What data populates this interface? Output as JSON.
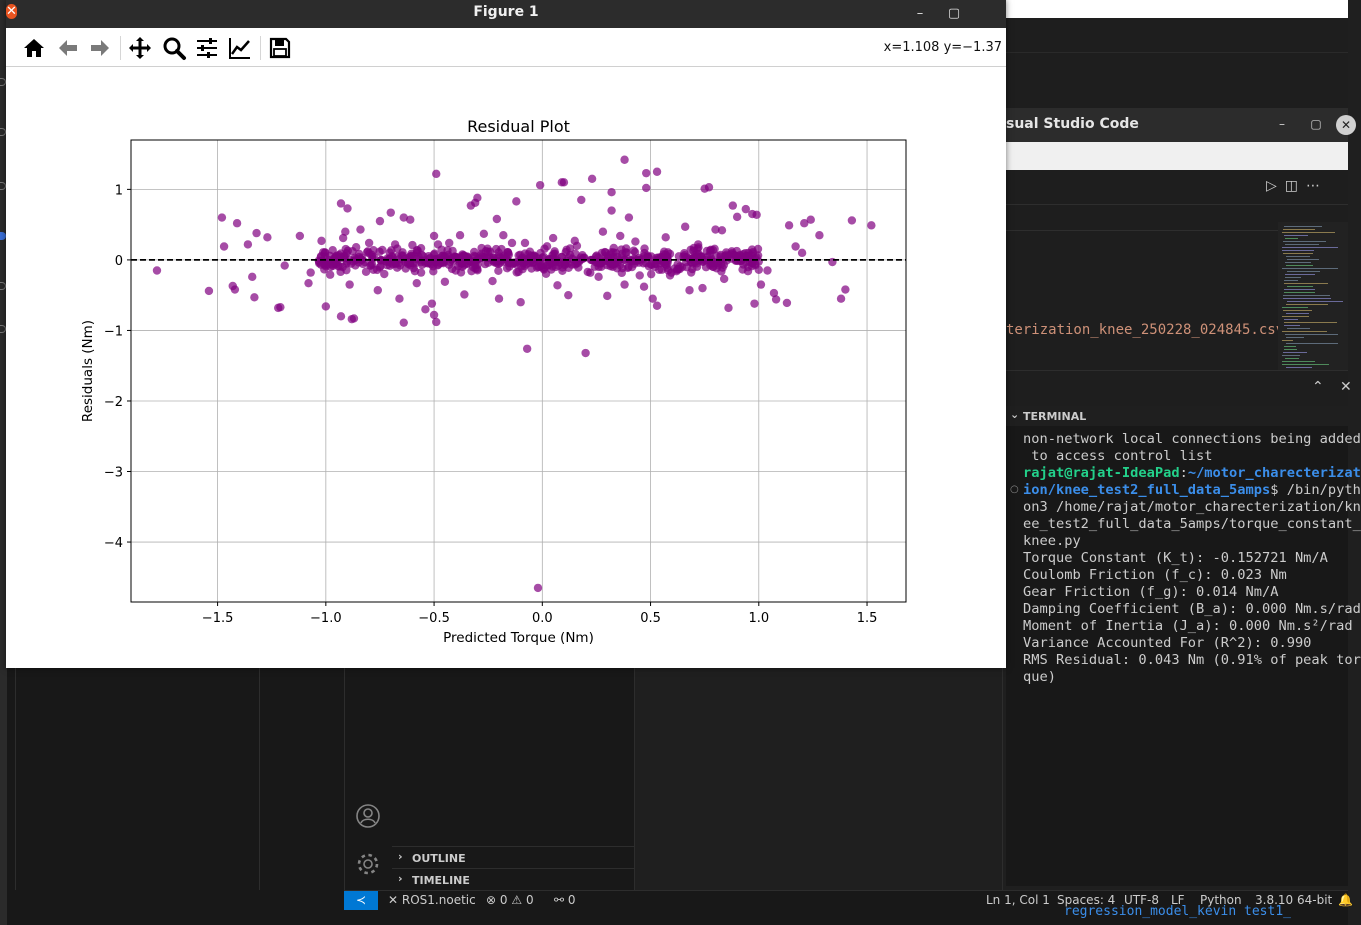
{
  "figure_window": {
    "title": "Figure 1",
    "coords_readout": "x=1.108 y=−1.37",
    "toolbar": [
      "home-icon",
      "back-arrow-icon",
      "forward-arrow-icon",
      "pan-icon",
      "zoom-icon",
      "subplots-config-icon",
      "edit-axis-icon",
      "save-icon"
    ]
  },
  "chart_data": {
    "type": "scatter",
    "title": "Residual Plot",
    "xlabel": "Predicted Torque (Nm)",
    "ylabel": "Residuals (Nm)",
    "xlim": [
      -1.9,
      1.68
    ],
    "ylim": [
      -4.85,
      1.7
    ],
    "x_ticks": [
      -1.5,
      -1.0,
      -0.5,
      0.0,
      0.5,
      1.0,
      1.5
    ],
    "x_tick_labels": [
      "−1.5",
      "−1.0",
      "−0.5",
      "0.0",
      "0.5",
      "1.0",
      "1.5"
    ],
    "y_ticks": [
      1,
      0,
      -1,
      -2,
      -3,
      -4
    ],
    "y_tick_labels": [
      "1",
      "0",
      "−1",
      "−2",
      "−3",
      "−4"
    ],
    "grid": true,
    "reference_line": {
      "y": 0,
      "style": "dashed",
      "color": "#000000"
    },
    "marker_color": "#800080",
    "marker_alpha": 0.7,
    "points": [
      [
        -1.78,
        -0.15
      ],
      [
        -1.54,
        -0.44
      ],
      [
        -1.48,
        0.6
      ],
      [
        -1.47,
        0.19
      ],
      [
        -1.42,
        -0.42
      ],
      [
        -1.43,
        -0.37
      ],
      [
        -1.41,
        0.52
      ],
      [
        -1.36,
        0.22
      ],
      [
        -1.34,
        -0.24
      ],
      [
        -1.33,
        -0.53
      ],
      [
        -1.32,
        0.38
      ],
      [
        -1.27,
        0.32
      ],
      [
        -1.22,
        -0.68
      ],
      [
        -1.21,
        -0.67
      ],
      [
        -1.19,
        -0.08
      ],
      [
        -1.12,
        0.34
      ],
      [
        -1.08,
        -0.33
      ],
      [
        -1.07,
        -0.18
      ],
      [
        -1.02,
        0.27
      ],
      [
        -1.0,
        -0.09
      ],
      [
        -1.0,
        -0.66
      ],
      [
        -0.98,
        -0.21
      ],
      [
        -0.95,
        0.06
      ],
      [
        -0.93,
        0.8
      ],
      [
        -0.93,
        -0.8
      ],
      [
        -0.92,
        0.31
      ],
      [
        -0.9,
        0.73
      ],
      [
        -0.91,
        0.4
      ],
      [
        -0.88,
        -0.84
      ],
      [
        -0.87,
        -0.83
      ],
      [
        -0.89,
        -0.35
      ],
      [
        -0.86,
        0.18
      ],
      [
        -0.84,
        0.43
      ],
      [
        -0.82,
        -0.03
      ],
      [
        -0.8,
        0.24
      ],
      [
        -0.78,
        -0.14
      ],
      [
        -0.75,
        0.55
      ],
      [
        -0.76,
        -0.43
      ],
      [
        -0.73,
        -0.2
      ],
      [
        -0.7,
        0.67
      ],
      [
        -0.68,
        0.22
      ],
      [
        -0.67,
        0.16
      ],
      [
        -0.66,
        -0.55
      ],
      [
        -0.64,
        0.6
      ],
      [
        -0.64,
        -0.89
      ],
      [
        -0.61,
        0.57
      ],
      [
        -0.58,
        -0.33
      ],
      [
        -0.6,
        0.21
      ],
      [
        -0.56,
        -0.18
      ],
      [
        -0.54,
        -0.7
      ],
      [
        -0.51,
        -0.62
      ],
      [
        -0.5,
        0.34
      ],
      [
        -0.5,
        -0.78
      ],
      [
        -0.49,
        -0.88
      ],
      [
        -0.49,
        1.22
      ],
      [
        -0.47,
        0.03
      ],
      [
        -0.45,
        -0.31
      ],
      [
        -0.43,
        0.24
      ],
      [
        -0.4,
        -0.15
      ],
      [
        -0.38,
        0.35
      ],
      [
        -0.36,
        -0.49
      ],
      [
        -0.35,
        0.04
      ],
      [
        -0.33,
        0.77
      ],
      [
        -0.31,
        0.81
      ],
      [
        -0.3,
        0.88
      ],
      [
        -0.3,
        -0.13
      ],
      [
        -0.27,
        0.37
      ],
      [
        -0.25,
        -0.04
      ],
      [
        -0.23,
        -0.3
      ],
      [
        -0.21,
        0.58
      ],
      [
        -0.2,
        -0.55
      ],
      [
        -0.18,
        0.35
      ],
      [
        -0.16,
        0.11
      ],
      [
        -0.14,
        0.24
      ],
      [
        -0.12,
        0.83
      ],
      [
        -0.11,
        -0.17
      ],
      [
        -0.1,
        -0.6
      ],
      [
        -0.08,
        0.24
      ],
      [
        -0.07,
        -1.26
      ],
      [
        -0.05,
        0.06
      ],
      [
        -0.02,
        -4.65
      ],
      [
        -0.01,
        1.06
      ],
      [
        0.02,
        -0.08
      ],
      [
        0.05,
        0.31
      ],
      [
        0.07,
        -0.36
      ],
      [
        0.09,
        1.1
      ],
      [
        0.1,
        1.1
      ],
      [
        0.12,
        -0.5
      ],
      [
        0.15,
        0.27
      ],
      [
        0.16,
        0.2
      ],
      [
        0.18,
        0.85
      ],
      [
        0.2,
        -1.32
      ],
      [
        0.21,
        -0.17
      ],
      [
        0.23,
        1.15
      ],
      [
        0.26,
        -0.24
      ],
      [
        0.28,
        0.4
      ],
      [
        0.3,
        -0.51
      ],
      [
        0.32,
        0.7
      ],
      [
        0.32,
        0.96
      ],
      [
        0.33,
        0.17
      ],
      [
        0.36,
        0.34
      ],
      [
        0.38,
        1.42
      ],
      [
        0.38,
        -0.35
      ],
      [
        0.4,
        0.6
      ],
      [
        0.43,
        0.26
      ],
      [
        0.45,
        -0.22
      ],
      [
        0.47,
        0.05
      ],
      [
        0.47,
        -0.38
      ],
      [
        0.48,
        1.23
      ],
      [
        0.48,
        1.02
      ],
      [
        0.51,
        -0.55
      ],
      [
        0.53,
        1.25
      ],
      [
        0.53,
        -0.65
      ],
      [
        0.54,
        -0.14
      ],
      [
        0.56,
        0.08
      ],
      [
        0.57,
        0.32
      ],
      [
        0.59,
        -0.22
      ],
      [
        0.62,
        -0.16
      ],
      [
        0.66,
        0.47
      ],
      [
        0.68,
        -0.43
      ],
      [
        0.7,
        0.17
      ],
      [
        0.72,
        0.22
      ],
      [
        0.74,
        -0.4
      ],
      [
        0.75,
        1.01
      ],
      [
        0.77,
        1.03
      ],
      [
        0.79,
        -0.1
      ],
      [
        0.8,
        0.43
      ],
      [
        0.83,
        0.42
      ],
      [
        0.84,
        -0.27
      ],
      [
        0.86,
        -0.68
      ],
      [
        0.88,
        0.77
      ],
      [
        0.9,
        0.61
      ],
      [
        0.93,
        0.02
      ],
      [
        0.94,
        0.72
      ],
      [
        0.95,
        -0.16
      ],
      [
        0.97,
        0.65
      ],
      [
        0.98,
        -0.62
      ],
      [
        0.99,
        0.64
      ],
      [
        1.0,
        -0.14
      ],
      [
        1.01,
        -0.35
      ],
      [
        1.04,
        -0.15
      ],
      [
        1.07,
        -0.47
      ],
      [
        1.08,
        -0.56
      ],
      [
        1.14,
        0.49
      ],
      [
        1.13,
        -0.61
      ],
      [
        1.17,
        0.19
      ],
      [
        1.2,
        0.1
      ],
      [
        1.21,
        0.52
      ],
      [
        1.24,
        0.57
      ],
      [
        1.28,
        0.35
      ],
      [
        1.34,
        -0.03
      ],
      [
        1.38,
        -0.55
      ],
      [
        1.4,
        -0.42
      ],
      [
        1.43,
        0.56
      ],
      [
        1.52,
        0.49
      ]
    ],
    "dense_band": [
      {
        "x_from": -1.05,
        "x_to": 1.0,
        "y_spread": 0.13,
        "count": 620
      }
    ]
  },
  "vscode": {
    "window_title": "sual Studio Code",
    "file_tab": "terization_knee_250228_024845.csv",
    "terminal_label": "TERMINAL",
    "terminal_lines": [
      [
        {
          "t": "non-network local connections being added"
        }
      ],
      [
        {
          "t": " to access control list"
        }
      ],
      [
        {
          "t": "rajat@rajat-IdeaPad",
          "c": "g"
        },
        {
          "t": ":"
        },
        {
          "t": "~/motor_charecterizat",
          "c": "b"
        }
      ],
      [
        {
          "t": "ion/knee_test2_full_data_5amps",
          "c": "b"
        },
        {
          "t": "$ /bin/pyth"
        }
      ],
      [
        {
          "t": "on3 /home/rajat/motor_charecterization/kn"
        }
      ],
      [
        {
          "t": "ee_test2_full_data_5amps/torque_constant_"
        }
      ],
      [
        {
          "t": "knee.py"
        }
      ],
      [
        {
          "t": "Torque Constant (K_t): -0.152721 Nm/A"
        }
      ],
      [
        {
          "t": "Coulomb Friction (f_c): 0.023 Nm"
        }
      ],
      [
        {
          "t": "Gear Friction (f_g): 0.014 Nm/A"
        }
      ],
      [
        {
          "t": "Damping Coefficient (B_a): 0.000 Nm.s/rad"
        }
      ],
      [
        {
          "t": "Moment of Inertia (J_a): 0.000 Nm.s²/rad"
        }
      ],
      [
        {
          "t": "Variance Accounted For (R^2): 0.990"
        }
      ],
      [
        {
          "t": "RMS Residual: 0.043 Nm (0.91% of peak tor"
        }
      ],
      [
        {
          "t": "que)"
        }
      ]
    ],
    "sidebar_sections": [
      "OUTLINE",
      "TIMELINE"
    ],
    "status_bar": {
      "remote": "ROS1.noetic",
      "errors": "0",
      "warnings": "0",
      "ports": "0",
      "position": "Ln 1, Col 1",
      "spaces": "Spaces: 4",
      "encoding": "UTF-8",
      "eol": "LF",
      "language": "Python",
      "interpreter": "3.8.10 64-bit"
    },
    "below_text": "regression_model_kevin       test1_"
  }
}
